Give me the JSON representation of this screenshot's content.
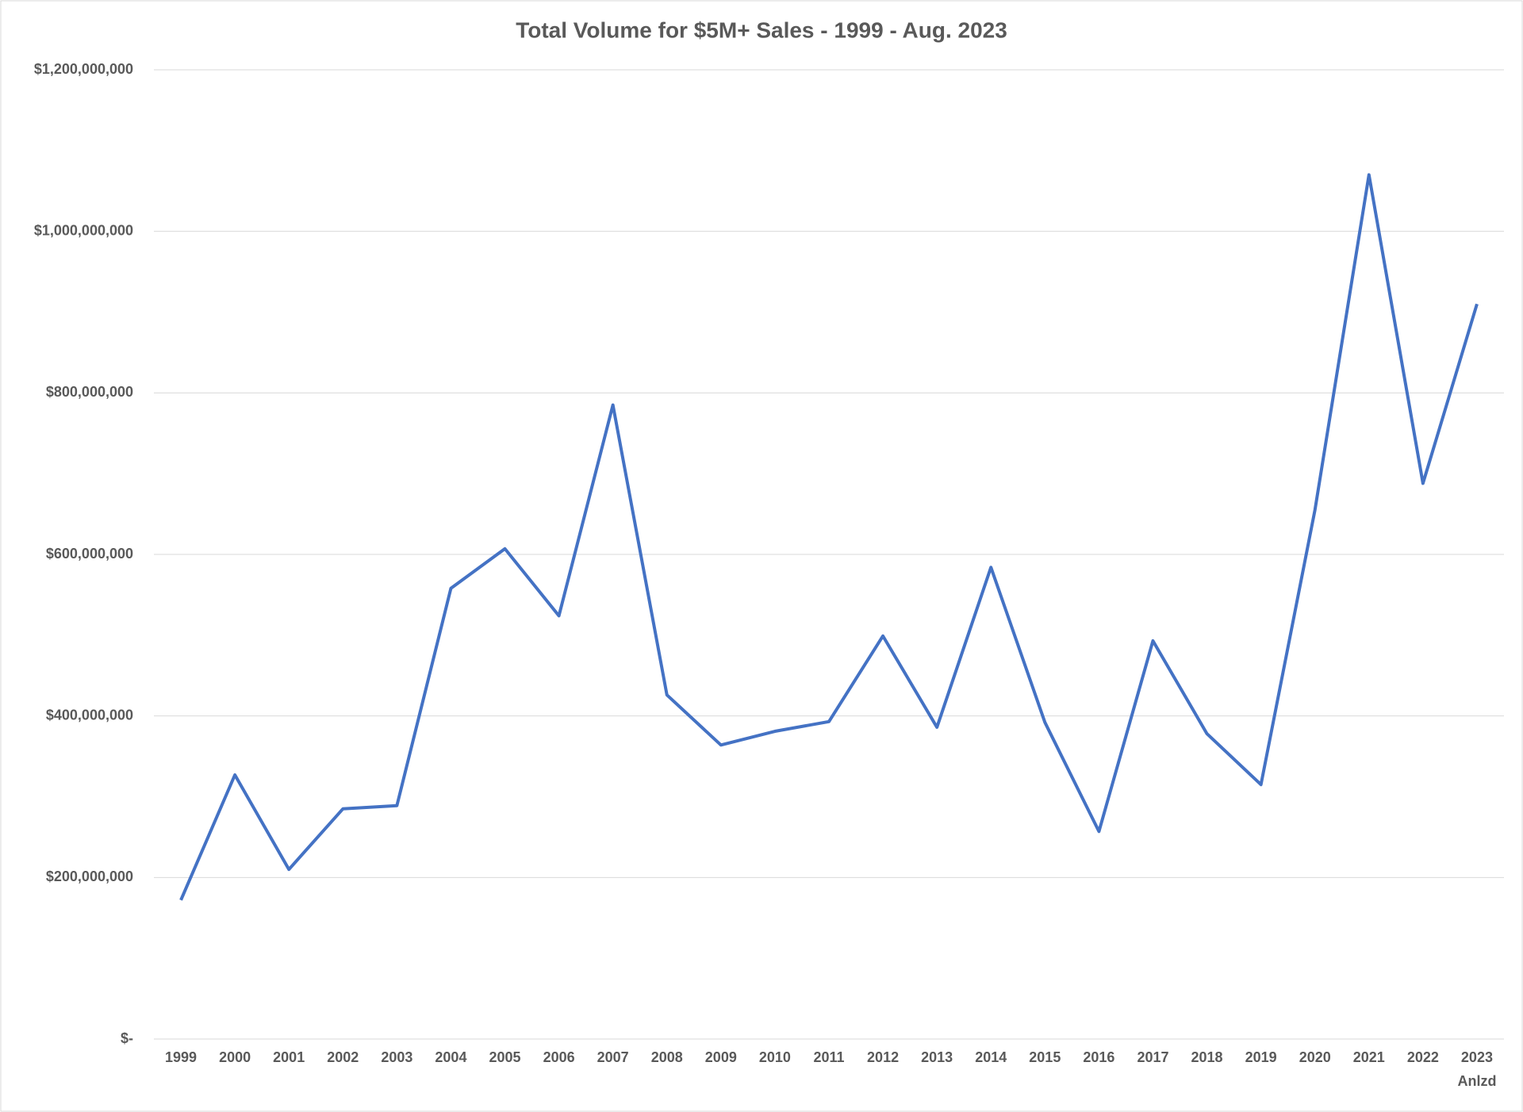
{
  "chart_data": {
    "type": "line",
    "title": "Total Volume for $5M+ Sales - 1999 - Aug. 2023",
    "categories": [
      "1999",
      "2000",
      "2001",
      "2002",
      "2003",
      "2004",
      "2005",
      "2006",
      "2007",
      "2008",
      "2009",
      "2010",
      "2011",
      "2012",
      "2013",
      "2014",
      "2015",
      "2016",
      "2017",
      "2018",
      "2019",
      "2020",
      "2021",
      "2022",
      "2023\nAnlzd"
    ],
    "series": [
      {
        "color": "#4472c4",
        "values": [
          172000000,
          327000000,
          210000000,
          285000000,
          289000000,
          558000000,
          607000000,
          524000000,
          785000000,
          426000000,
          364000000,
          381000000,
          393000000,
          499000000,
          386000000,
          584000000,
          392000000,
          257000000,
          493000000,
          378000000,
          315000000,
          655000000,
          1070000000,
          688000000,
          910000000
        ]
      }
    ],
    "ylim": [
      0,
      1200000000
    ],
    "yticks": [
      {
        "value": 0,
        "label": "$-"
      },
      {
        "value": 200000000,
        "label": "$200,000,000"
      },
      {
        "value": 400000000,
        "label": "$400,000,000"
      },
      {
        "value": 600000000,
        "label": "$600,000,000"
      },
      {
        "value": 800000000,
        "label": "$800,000,000"
      },
      {
        "value": 1000000000,
        "label": "$1,000,000,000"
      },
      {
        "value": 1200000000,
        "label": "$1,200,000,000"
      }
    ],
    "grid": true
  }
}
